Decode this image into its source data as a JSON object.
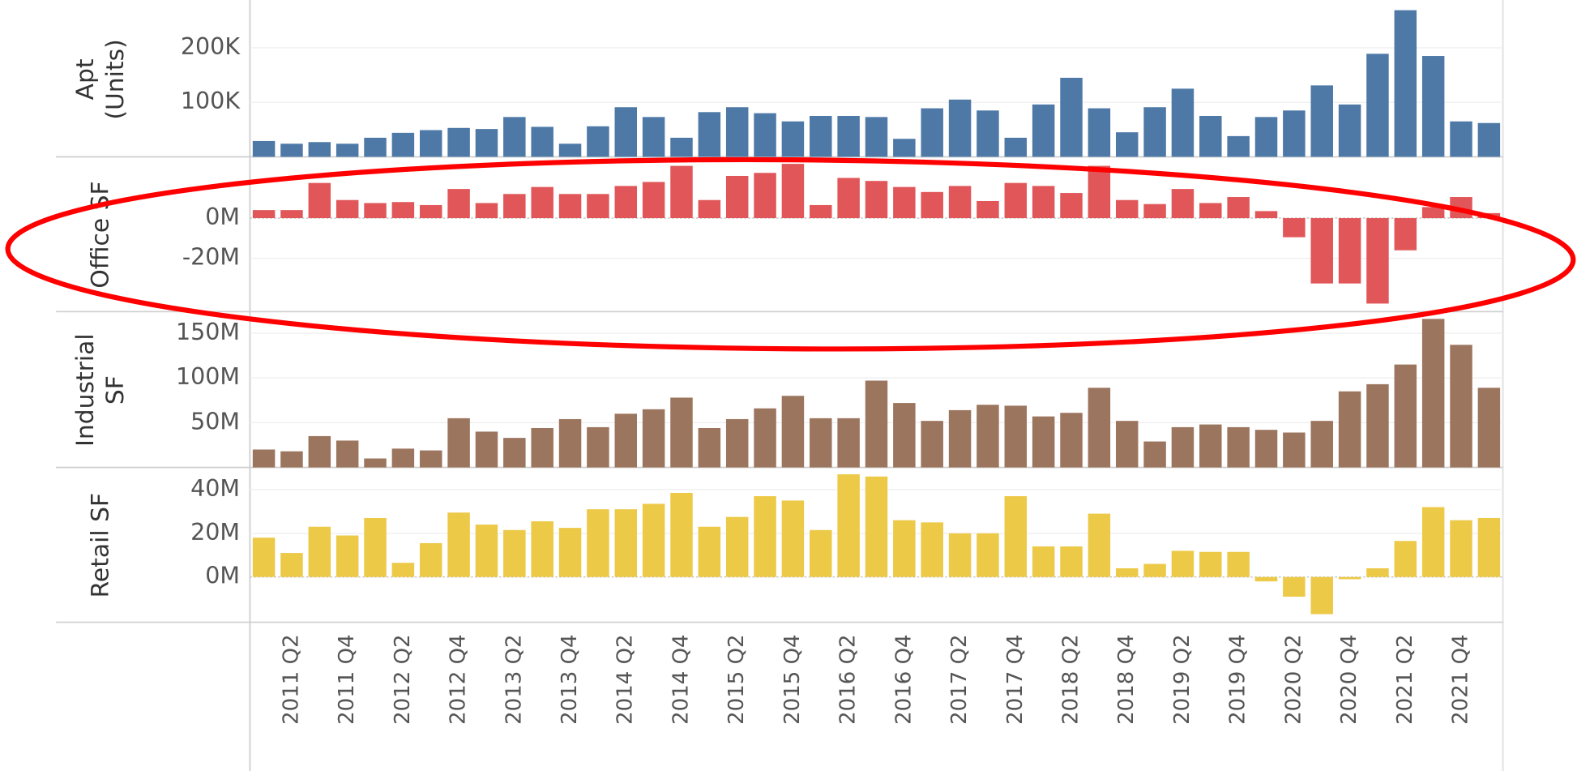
{
  "chart_data": [
    {
      "type": "bar",
      "ylabel": [
        "Apt",
        "(Units)"
      ],
      "color": "#4e79a7",
      "values": [
        29000,
        24000,
        27000,
        24000,
        35000,
        44000,
        49000,
        53000,
        51000,
        73000,
        55000,
        24000,
        56000,
        91000,
        73000,
        35000,
        82000,
        91000,
        80000,
        65000,
        75000,
        75000,
        73000,
        33000,
        89000,
        105000,
        85000,
        35000,
        96000,
        145000,
        89000,
        45000,
        91000,
        125000,
        75000,
        38000,
        73000,
        85000,
        131000,
        96000,
        189000,
        269000,
        185000,
        65000,
        62000
      ],
      "ylim": [
        0,
        284000
      ],
      "yticks": [
        {
          "value": 100000,
          "label": "100K"
        },
        {
          "value": 200000,
          "label": "200K"
        }
      ],
      "grid": true
    },
    {
      "type": "bar",
      "ylabel": [
        "Office SF"
      ],
      "color": "#e15759",
      "values": [
        4,
        4,
        17.5,
        9,
        7.5,
        8,
        6.5,
        14.5,
        7.5,
        12,
        15.5,
        12,
        12,
        16,
        18,
        26,
        9,
        21,
        22.5,
        27,
        6.5,
        20,
        18.5,
        15.5,
        13,
        16,
        8.5,
        17.5,
        16,
        12.5,
        26,
        9,
        7,
        14.5,
        7.5,
        10.5,
        3.5,
        -9.5,
        -32.5,
        -32.5,
        -42.5,
        -16,
        5.5,
        10.5,
        2.5
      ],
      "ylim": [
        -46.5,
        30
      ],
      "yticks": [
        {
          "value": 0,
          "label": "0M"
        },
        {
          "value": -20,
          "label": "-20M"
        }
      ],
      "grid": true
    },
    {
      "type": "bar",
      "ylabel": [
        "Industrial",
        "SF"
      ],
      "color": "#9c755f",
      "values": [
        20,
        18,
        35,
        30,
        10,
        21,
        19,
        55,
        40,
        33,
        44,
        54,
        45,
        60,
        65,
        78,
        44,
        54,
        66,
        80,
        55,
        55,
        97,
        72,
        52,
        64,
        70,
        69,
        57,
        61,
        89,
        52,
        29,
        45,
        48,
        45,
        42,
        39,
        52,
        85,
        93,
        115,
        166,
        137,
        89
      ],
      "ylim": [
        0,
        173
      ],
      "yticks": [
        {
          "value": 50,
          "label": "50M"
        },
        {
          "value": 100,
          "label": "100M"
        },
        {
          "value": 150,
          "label": "150M"
        }
      ],
      "grid": true
    },
    {
      "type": "bar",
      "ylabel": [
        "Retail SF"
      ],
      "color": "#edc948",
      "categories": [
        null,
        "2011 Q2",
        null,
        "2011 Q4",
        null,
        "2012 Q2",
        null,
        "2012 Q4",
        null,
        "2013 Q2",
        null,
        "2013 Q4",
        null,
        "2014 Q2",
        null,
        "2014 Q4",
        null,
        "2015 Q2",
        null,
        "2015 Q4",
        null,
        "2016 Q2",
        null,
        "2016 Q4",
        null,
        "2017 Q2",
        null,
        "2017 Q4",
        null,
        "2018 Q2",
        null,
        "2018 Q4",
        null,
        "2019 Q2",
        null,
        "2019 Q4",
        null,
        "2020 Q2",
        null,
        "2020 Q4",
        null,
        "2021 Q2",
        null,
        "2021 Q4",
        null
      ],
      "values": [
        18,
        11,
        23,
        19,
        27,
        6.5,
        15.5,
        29.5,
        24,
        21.5,
        25.5,
        22.5,
        31,
        31,
        33.5,
        38.5,
        23,
        27.5,
        37,
        35,
        21.5,
        47,
        46,
        26,
        25,
        20,
        20,
        37,
        14,
        14,
        29,
        4,
        6,
        12,
        11.5,
        11.5,
        -2,
        -9,
        -17,
        -1,
        4,
        16.5,
        32,
        26,
        27
      ],
      "ylim": [
        -20.7,
        49.7
      ],
      "yticks": [
        {
          "value": 0,
          "label": "0M"
        },
        {
          "value": 20,
          "label": "20M"
        },
        {
          "value": 40,
          "label": "40M"
        }
      ],
      "grid": true
    }
  ]
}
